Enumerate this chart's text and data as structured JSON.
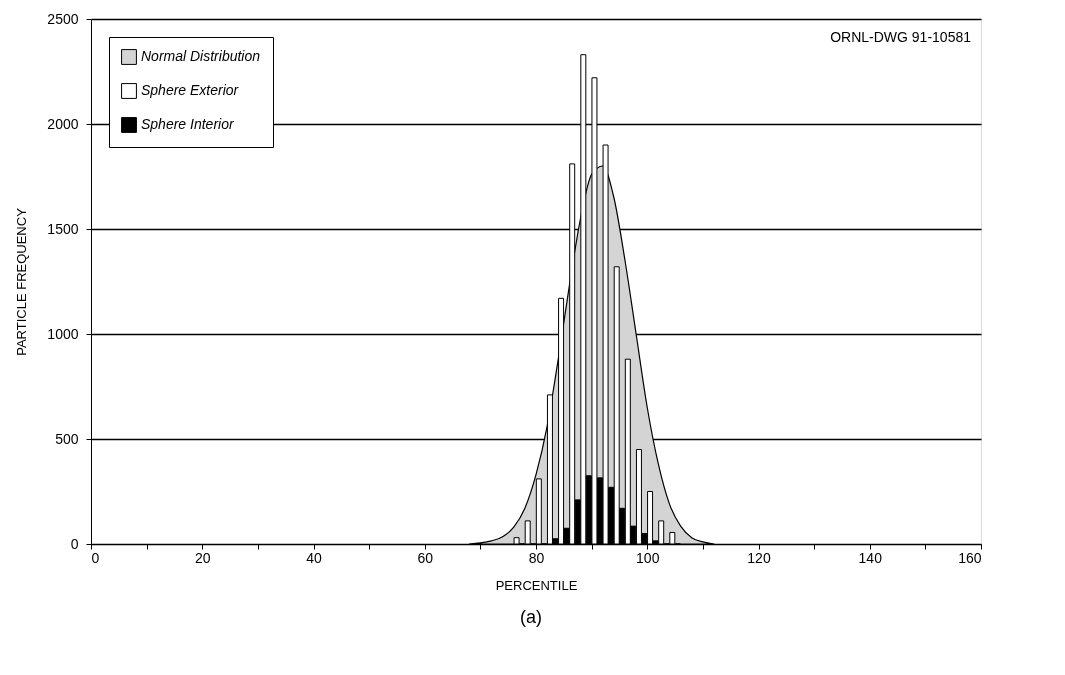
{
  "chart_data": {
    "type": "bar",
    "xlabel": "PERCENTILE",
    "ylabel": "PARTICLE FREQUENCY",
    "annotations": [
      "ORNL-DWG 91-10581",
      "(a)"
    ],
    "xlim": [
      0,
      160
    ],
    "xticks": [
      0,
      {
        "value": 10,
        "label": null
      },
      20,
      {
        "value": 30,
        "label": null
      },
      40,
      {
        "value": 50,
        "label": null
      },
      60,
      {
        "value": 70,
        "label": null
      },
      80,
      {
        "value": 90,
        "label": null
      },
      100,
      {
        "value": 110,
        "label": null
      },
      120,
      {
        "value": 130,
        "label": null
      },
      140,
      {
        "value": 150,
        "label": null
      },
      160
    ],
    "ylim": [
      0,
      2500
    ],
    "yticks": [
      0,
      500,
      1000,
      1500,
      2000,
      2500
    ],
    "grid": "y",
    "legend": "top left",
    "series": [
      {
        "name": "Normal Distribution",
        "type": "area",
        "color": "#d4d4d4",
        "x": [
          68,
          70,
          72,
          74,
          76,
          78,
          80,
          82,
          84,
          86,
          88,
          90,
          92,
          94,
          96,
          98,
          100,
          102,
          104,
          106,
          108,
          110,
          112
        ],
        "values": [
          0,
          5,
          15,
          35,
          80,
          170,
          330,
          560,
          880,
          1230,
          1550,
          1760,
          1800,
          1650,
          1350,
          1000,
          650,
          380,
          190,
          85,
          30,
          10,
          0
        ]
      },
      {
        "name": "Sphere Exterior",
        "color": "#ffffff",
        "x": [
          77,
          79,
          81,
          83,
          85,
          87,
          89,
          91,
          93,
          95,
          97,
          99,
          101,
          103,
          105
        ],
        "values": [
          30,
          110,
          310,
          710,
          1170,
          1810,
          2330,
          2220,
          1900,
          1320,
          880,
          450,
          250,
          110,
          55
        ]
      },
      {
        "name": "Sphere Interior",
        "color": "#000000",
        "x": [
          77,
          79,
          81,
          83,
          85,
          87,
          89,
          91,
          93,
          95,
          97,
          99,
          101,
          103,
          105
        ],
        "values": [
          0,
          0,
          0,
          25,
          75,
          210,
          325,
          315,
          270,
          170,
          85,
          50,
          15,
          0,
          0
        ]
      }
    ]
  }
}
